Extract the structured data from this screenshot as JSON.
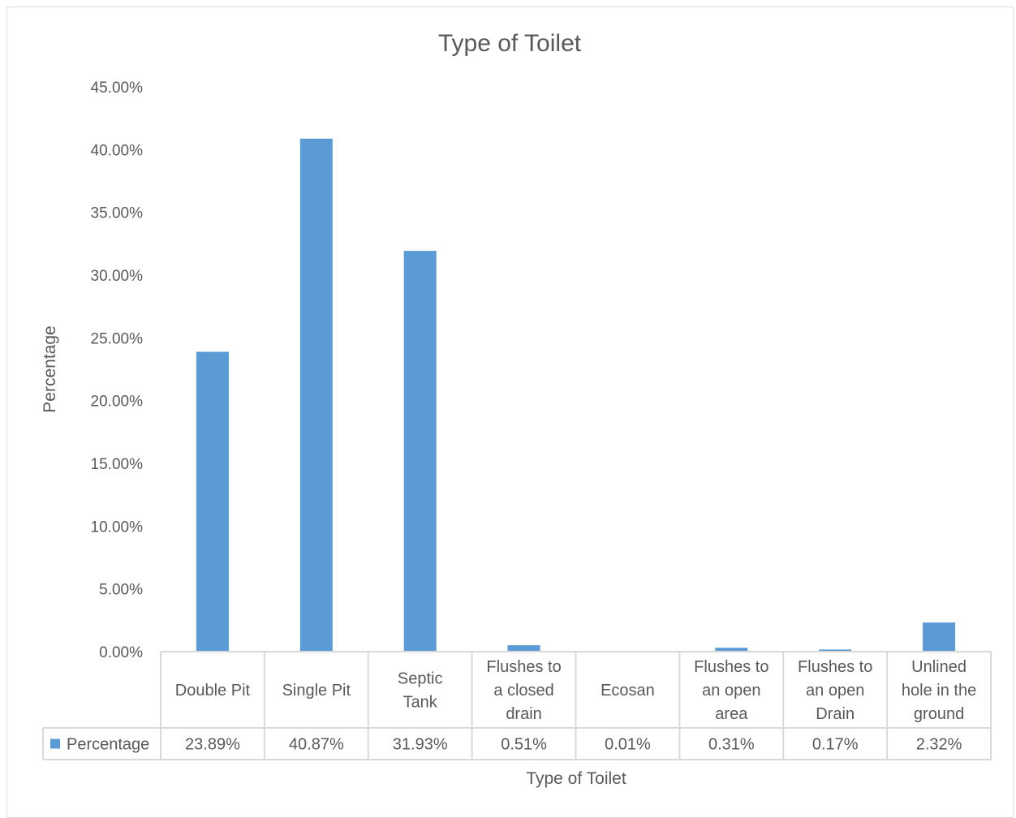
{
  "chart_data": {
    "type": "bar",
    "title": "Type of Toilet",
    "xlabel": "Type of Toilet",
    "ylabel": "Percentage",
    "ylim": [
      0,
      45
    ],
    "yticks": [
      "0.00%",
      "5.00%",
      "10.00%",
      "15.00%",
      "20.00%",
      "25.00%",
      "30.00%",
      "35.00%",
      "40.00%",
      "45.00%"
    ],
    "categories": [
      [
        "Double Pit"
      ],
      [
        "Single Pit"
      ],
      [
        "Septic",
        "Tank"
      ],
      [
        "Flushes to",
        "a closed",
        "drain"
      ],
      [
        "Ecosan"
      ],
      [
        "Flushes to",
        "an open",
        "area"
      ],
      [
        "Flushes to",
        "an open",
        "Drain"
      ],
      [
        "Unlined",
        "hole in the",
        "ground"
      ]
    ],
    "series": [
      {
        "name": "Percentage",
        "color": "#5b9bd5",
        "values": [
          23.89,
          40.87,
          31.93,
          0.51,
          0.01,
          0.31,
          0.17,
          2.32
        ],
        "value_labels": [
          "23.89%",
          "40.87%",
          "31.93%",
          "0.51%",
          "0.01%",
          "0.31%",
          "0.17%",
          "2.32%"
        ]
      }
    ],
    "grid": false,
    "legend": "data-table"
  }
}
